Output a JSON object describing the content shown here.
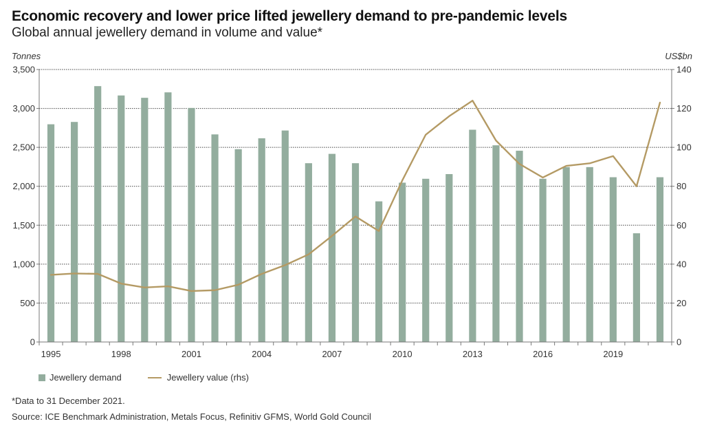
{
  "chart_data": {
    "type": "bar+line",
    "title": "Economic recovery and lower price lifted jewellery demand to pre-pandemic levels",
    "subtitle": "Global annual jewellery demand in volume and value*",
    "ylabel_left": "Tonnes",
    "ylabel_right": "US$bn",
    "ylim_left": [
      0,
      3500
    ],
    "ylim_right": [
      0,
      140
    ],
    "yticks_left": [
      0,
      500,
      1000,
      1500,
      2000,
      2500,
      3000,
      3500
    ],
    "yticks_left_labels": [
      "0",
      "500",
      "1,000",
      "1,500",
      "2,000",
      "2,500",
      "3,000",
      "3,500"
    ],
    "yticks_right": [
      0,
      20,
      40,
      60,
      80,
      100,
      120,
      140
    ],
    "yticks_right_labels": [
      "0",
      "20",
      "40",
      "60",
      "80",
      "100",
      "120",
      "140"
    ],
    "grid": "horizontal dotted",
    "x": [
      1995,
      1996,
      1997,
      1998,
      1999,
      2000,
      2001,
      2002,
      2003,
      2004,
      2005,
      2006,
      2007,
      2008,
      2009,
      2010,
      2011,
      2012,
      2013,
      2014,
      2015,
      2016,
      2017,
      2018,
      2019,
      2020,
      2021
    ],
    "xtick_labels": [
      "1995",
      "1998",
      "2001",
      "2004",
      "2007",
      "2010",
      "2013",
      "2016",
      "2019"
    ],
    "series": [
      {
        "name": "Jewellery demand",
        "type": "bar",
        "axis": "left",
        "color": "#93ad9e",
        "values": [
          2800,
          2830,
          3290,
          3170,
          3140,
          3210,
          3010,
          2670,
          2480,
          2620,
          2720,
          2300,
          2420,
          2300,
          1810,
          2050,
          2100,
          2160,
          2730,
          2530,
          2460,
          2100,
          2250,
          2250,
          2120,
          1400,
          2120
        ]
      },
      {
        "name": "Jewellery value (rhs)",
        "type": "line",
        "axis": "right",
        "color": "#b49a64",
        "values": [
          34.5,
          35.2,
          35.0,
          30.0,
          28.0,
          28.6,
          26.2,
          26.6,
          29.4,
          35.0,
          39.5,
          45.0,
          54.5,
          64.5,
          57.0,
          83.0,
          106.5,
          116.0,
          124.0,
          103.5,
          91.5,
          84.5,
          90.5,
          91.8,
          95.5,
          80.0,
          123.0
        ]
      }
    ],
    "legend": [
      "Jewellery demand",
      "Jewellery value (rhs)"
    ],
    "legend_position": "bottom-left"
  },
  "footnote": "*Data to 31 December 2021.",
  "source": "Source: ICE Benchmark Administration, Metals Focus, Refinitiv GFMS, World Gold Council"
}
